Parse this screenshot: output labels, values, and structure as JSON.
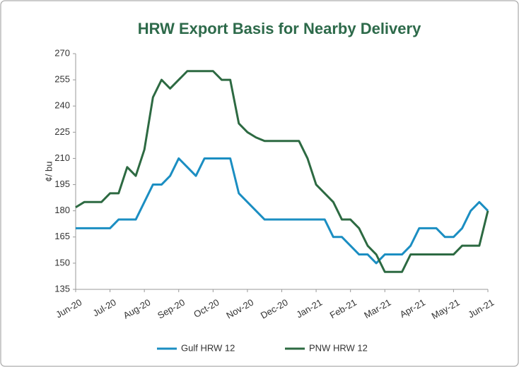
{
  "chart_data": {
    "type": "line",
    "title": "HRW Export Basis for Nearby Delivery",
    "y_label": "¢/ bu",
    "categories": [
      "Jun-20",
      null,
      null,
      null,
      "Jul-20",
      null,
      null,
      null,
      "Aug-20",
      null,
      null,
      null,
      "Sep-20",
      null,
      null,
      null,
      "Oct-20",
      null,
      null,
      null,
      "Nov-20",
      null,
      null,
      null,
      "Dec-20",
      null,
      null,
      null,
      "Jan-21",
      null,
      null,
      null,
      "Feb-21",
      null,
      null,
      null,
      "Mar-21",
      null,
      null,
      null,
      "Apr-21",
      null,
      null,
      null,
      "May-21",
      null,
      null,
      null,
      "Jun-21"
    ],
    "series": [
      {
        "name": "Gulf HRW 12",
        "color": "#1b8ec2",
        "values": [
          170,
          170,
          170,
          170,
          170,
          175,
          175,
          175,
          185,
          195,
          195,
          200,
          210,
          205,
          200,
          210,
          210,
          210,
          210,
          190,
          185,
          180,
          175,
          175,
          175,
          175,
          175,
          175,
          175,
          175,
          165,
          165,
          160,
          155,
          155,
          150,
          155,
          155,
          155,
          160,
          170,
          170,
          170,
          165,
          165,
          170,
          180,
          185,
          180
        ]
      },
      {
        "name": "PNW HRW 12",
        "color": "#2d6a42",
        "values": [
          182,
          185,
          185,
          185,
          190,
          190,
          205,
          200,
          215,
          245,
          255,
          250,
          255,
          260,
          260,
          260,
          260,
          255,
          255,
          230,
          225,
          222,
          220,
          220,
          220,
          220,
          220,
          210,
          195,
          190,
          185,
          175,
          175,
          170,
          160,
          155,
          145,
          145,
          145,
          155,
          155,
          155,
          155,
          155,
          155,
          160,
          160,
          160,
          180
        ]
      }
    ],
    "ylim": [
      135,
      270
    ],
    "yticks": [
      135,
      150,
      165,
      180,
      195,
      210,
      225,
      240,
      255,
      270
    ],
    "grid": false,
    "legend": "bottom"
  }
}
